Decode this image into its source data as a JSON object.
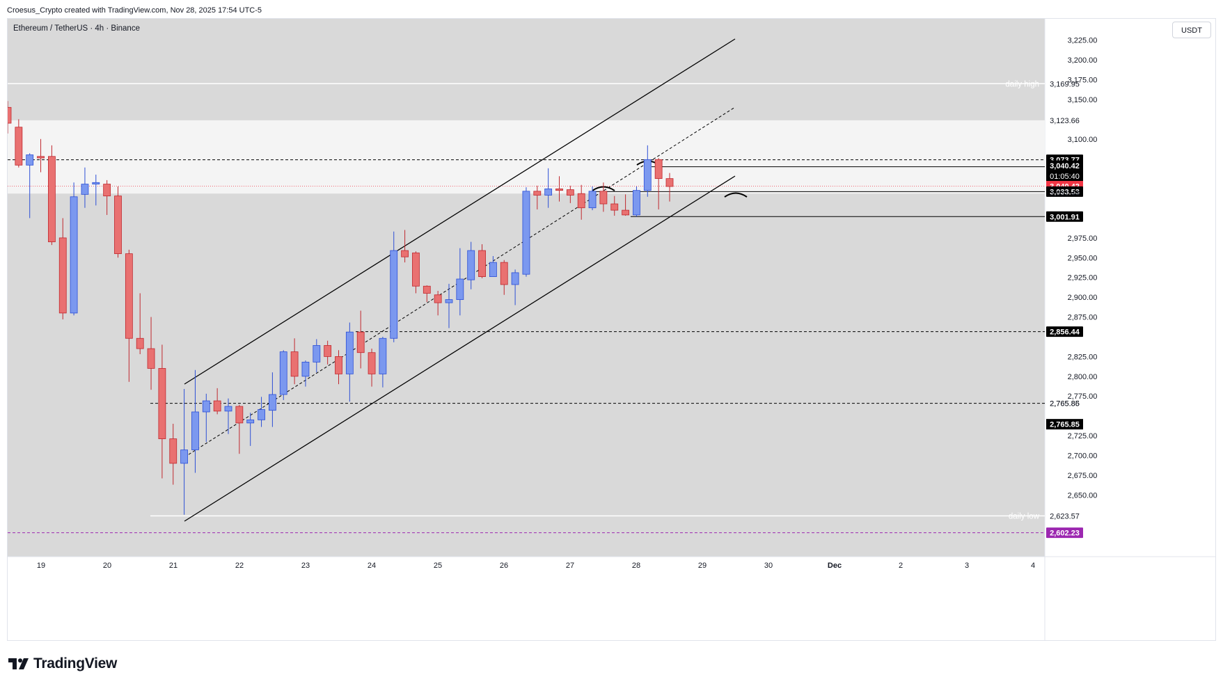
{
  "header": {
    "caption": "Croesus_Crypto created with TradingView.com, Nov 28, 2025 17:54 UTC-5",
    "symbol_line": "Ethereum / TetherUS · 4h · Binance",
    "currency": "USDT"
  },
  "footer": {
    "logo_text": "TradingView",
    "logo_icon": "tradingview-logo-icon"
  },
  "colors": {
    "background": "#d9d9d9",
    "zone": "#f4f4f4",
    "bull": "#7b98ef",
    "bear": "#e97171",
    "bull_border": "#2c4fd6",
    "bear_border": "#c0282e",
    "line": "#000000",
    "current_price": "#f23645",
    "purple": "#9c27b0"
  },
  "chart_data": {
    "type": "candlestick",
    "title": "Ethereum / TetherUS · 4h · Binance",
    "timeframe": "4h",
    "ylim": [
      2572,
      3252
    ],
    "x_ticks": [
      "19",
      "20",
      "21",
      "22",
      "23",
      "24",
      "25",
      "26",
      "27",
      "28",
      "29",
      "30",
      "Dec",
      "2",
      "3",
      "4"
    ],
    "y_ticks": [
      "3,225.00",
      "3,200.00",
      "3,175.00",
      "3,150.00",
      "3,100.00",
      "2,975.00",
      "2,950.00",
      "2,925.00",
      "2,900.00",
      "2,875.00",
      "2,825.00",
      "2,800.00",
      "2,775.00",
      "2,725.00",
      "2,700.00",
      "2,675.00",
      "2,650.00"
    ],
    "candles": [
      {
        "o": 3140,
        "h": 3148,
        "l": 3107,
        "c": 3120
      },
      {
        "o": 3115,
        "h": 3125,
        "l": 3064,
        "c": 3067
      },
      {
        "o": 3067,
        "h": 3082,
        "l": 3000,
        "c": 3080
      },
      {
        "o": 3078,
        "h": 3100,
        "l": 3058,
        "c": 3076
      },
      {
        "o": 3078,
        "h": 3092,
        "l": 2966,
        "c": 2970
      },
      {
        "o": 2975,
        "h": 3000,
        "l": 2872,
        "c": 2880
      },
      {
        "o": 2880,
        "h": 3045,
        "l": 2877,
        "c": 3027
      },
      {
        "o": 3030,
        "h": 3064,
        "l": 3013,
        "c": 3043
      },
      {
        "o": 3043,
        "h": 3055,
        "l": 3016,
        "c": 3045
      },
      {
        "o": 3043,
        "h": 3048,
        "l": 3004,
        "c": 3028
      },
      {
        "o": 3028,
        "h": 3040,
        "l": 2950,
        "c": 2955
      },
      {
        "o": 2955,
        "h": 2960,
        "l": 2793,
        "c": 2848
      },
      {
        "o": 2848,
        "h": 2905,
        "l": 2828,
        "c": 2835
      },
      {
        "o": 2835,
        "h": 2875,
        "l": 2783,
        "c": 2810
      },
      {
        "o": 2810,
        "h": 2840,
        "l": 2671,
        "c": 2721
      },
      {
        "o": 2721,
        "h": 2740,
        "l": 2663,
        "c": 2690
      },
      {
        "o": 2690,
        "h": 2784,
        "l": 2625,
        "c": 2707
      },
      {
        "o": 2707,
        "h": 2808,
        "l": 2678,
        "c": 2755
      },
      {
        "o": 2755,
        "h": 2778,
        "l": 2717,
        "c": 2769
      },
      {
        "o": 2769,
        "h": 2785,
        "l": 2752,
        "c": 2756
      },
      {
        "o": 2756,
        "h": 2772,
        "l": 2727,
        "c": 2762
      },
      {
        "o": 2762,
        "h": 2764,
        "l": 2702,
        "c": 2741
      },
      {
        "o": 2741,
        "h": 2754,
        "l": 2712,
        "c": 2745
      },
      {
        "o": 2745,
        "h": 2774,
        "l": 2736,
        "c": 2758
      },
      {
        "o": 2757,
        "h": 2805,
        "l": 2736,
        "c": 2777
      },
      {
        "o": 2777,
        "h": 2833,
        "l": 2770,
        "c": 2831
      },
      {
        "o": 2831,
        "h": 2848,
        "l": 2790,
        "c": 2800
      },
      {
        "o": 2800,
        "h": 2820,
        "l": 2787,
        "c": 2818
      },
      {
        "o": 2818,
        "h": 2847,
        "l": 2805,
        "c": 2839
      },
      {
        "o": 2839,
        "h": 2845,
        "l": 2815,
        "c": 2825
      },
      {
        "o": 2825,
        "h": 2833,
        "l": 2790,
        "c": 2803
      },
      {
        "o": 2803,
        "h": 2868,
        "l": 2768,
        "c": 2856
      },
      {
        "o": 2856,
        "h": 2883,
        "l": 2810,
        "c": 2830
      },
      {
        "o": 2830,
        "h": 2835,
        "l": 2787,
        "c": 2803
      },
      {
        "o": 2803,
        "h": 2850,
        "l": 2786,
        "c": 2848
      },
      {
        "o": 2848,
        "h": 2983,
        "l": 2843,
        "c": 2959
      },
      {
        "o": 2959,
        "h": 2985,
        "l": 2944,
        "c": 2951
      },
      {
        "o": 2956,
        "h": 2958,
        "l": 2905,
        "c": 2914
      },
      {
        "o": 2914,
        "h": 2915,
        "l": 2894,
        "c": 2905
      },
      {
        "o": 2903,
        "h": 2908,
        "l": 2877,
        "c": 2893
      },
      {
        "o": 2893,
        "h": 2917,
        "l": 2861,
        "c": 2897
      },
      {
        "o": 2897,
        "h": 2962,
        "l": 2877,
        "c": 2923
      },
      {
        "o": 2922,
        "h": 2970,
        "l": 2910,
        "c": 2959
      },
      {
        "o": 2959,
        "h": 2967,
        "l": 2924,
        "c": 2926
      },
      {
        "o": 2926,
        "h": 2952,
        "l": 2928,
        "c": 2944
      },
      {
        "o": 2944,
        "h": 2947,
        "l": 2903,
        "c": 2916
      },
      {
        "o": 2916,
        "h": 2935,
        "l": 2890,
        "c": 2931
      },
      {
        "o": 2929,
        "h": 3039,
        "l": 2926,
        "c": 3034
      },
      {
        "o": 3034,
        "h": 3041,
        "l": 3011,
        "c": 3029
      },
      {
        "o": 3029,
        "h": 3063,
        "l": 3013,
        "c": 3037
      },
      {
        "o": 3037,
        "h": 3053,
        "l": 3021,
        "c": 3035
      },
      {
        "o": 3036,
        "h": 3041,
        "l": 3019,
        "c": 3029
      },
      {
        "o": 3031,
        "h": 3042,
        "l": 2998,
        "c": 3013
      },
      {
        "o": 3013,
        "h": 3040,
        "l": 3010,
        "c": 3034
      },
      {
        "o": 3034,
        "h": 3045,
        "l": 3008,
        "c": 3018
      },
      {
        "o": 3018,
        "h": 3028,
        "l": 3003,
        "c": 3010
      },
      {
        "o": 3010,
        "h": 3030,
        "l": 3003,
        "c": 3004
      },
      {
        "o": 3004,
        "h": 3040,
        "l": 3002,
        "c": 3035
      },
      {
        "o": 3035,
        "h": 3092,
        "l": 3027,
        "c": 3074
      },
      {
        "o": 3074,
        "h": 3076,
        "l": 3011,
        "c": 3050
      },
      {
        "o": 3050,
        "h": 3057,
        "l": 3021,
        "c": 3040
      }
    ],
    "horizontal_levels": [
      {
        "price": "3,169.95",
        "label": "daily high"
      },
      {
        "price": "3,123.66"
      },
      {
        "price": "3,073.77"
      },
      {
        "price": "3,040.42"
      },
      {
        "price": "3,033.53"
      },
      {
        "price": "3,031.44"
      },
      {
        "price": "3,001.91"
      },
      {
        "price": "2,856.44"
      },
      {
        "price": "2,765.86"
      },
      {
        "price": "2,765.85"
      },
      {
        "price": "2,623.57",
        "label": "daily low"
      },
      {
        "price": "2,602.23"
      }
    ],
    "countdown": "01:05:40",
    "supply_zone": [
      3031,
      3123.66
    ]
  }
}
